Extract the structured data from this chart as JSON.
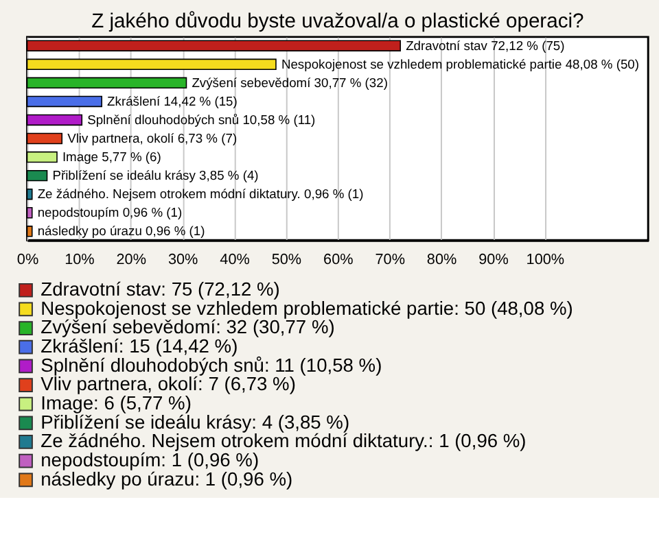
{
  "chart_data": {
    "type": "bar",
    "orientation": "horizontal",
    "title": "Z jakého důvodu byste uvažoval/a o plastické operaci?",
    "categories": [
      null,
      null,
      null,
      null,
      null,
      null,
      null,
      null,
      null,
      null,
      null
    ],
    "series": [
      {
        "name": "Zdravotní stav: 75 (72,12 %)",
        "color": "#c0201c",
        "values": [
          72.12,
          null,
          null,
          null,
          null,
          null,
          null,
          null,
          null,
          null,
          null
        ],
        "value_labels": [
          "Zdravotní stav 72,12 % (75)",
          null,
          null,
          null,
          null,
          null,
          null,
          null,
          null,
          null,
          null
        ]
      },
      {
        "name": "Nespokojenost se vzhledem problematické partie: 50 (48,08 %)",
        "color": "#f5dc1e",
        "values": [
          null,
          48.08,
          null,
          null,
          null,
          null,
          null,
          null,
          null,
          null,
          null
        ],
        "value_labels": [
          null,
          "Nespokojenost se vzhledem problematické partie 48,08 % (50)",
          null,
          null,
          null,
          null,
          null,
          null,
          null,
          null,
          null
        ]
      },
      {
        "name": "Zvýšení sebevědomí: 32 (30,77 %)",
        "color": "#28b428",
        "values": [
          null,
          null,
          30.77,
          null,
          null,
          null,
          null,
          null,
          null,
          null,
          null
        ],
        "value_labels": [
          null,
          null,
          "Zvýšení sebevědomí 30,77 % (32)",
          null,
          null,
          null,
          null,
          null,
          null,
          null,
          null
        ]
      },
      {
        "name": "Zkrášlení: 15 (14,42 %)",
        "color": "#4a6ee8",
        "values": [
          null,
          null,
          null,
          14.42,
          null,
          null,
          null,
          null,
          null,
          null,
          null
        ],
        "value_labels": [
          null,
          null,
          null,
          "Zkrášlení 14,42 % (15)",
          null,
          null,
          null,
          null,
          null,
          null,
          null
        ]
      },
      {
        "name": "Splnění dlouhodobých snů: 11 (10,58 %)",
        "color": "#b01cc8",
        "values": [
          null,
          null,
          null,
          null,
          10.58,
          null,
          null,
          null,
          null,
          null,
          null
        ],
        "value_labels": [
          null,
          null,
          null,
          null,
          "Splnění dlouhodobých snů 10,58 % (11)",
          null,
          null,
          null,
          null,
          null,
          null
        ]
      },
      {
        "name": "Vliv partnera, okolí: 7 (6,73 %)",
        "color": "#e0401c",
        "values": [
          null,
          null,
          null,
          null,
          null,
          6.73,
          null,
          null,
          null,
          null,
          null
        ],
        "value_labels": [
          null,
          null,
          null,
          null,
          null,
          "Vliv partnera, okolí 6,73 % (7)",
          null,
          null,
          null,
          null,
          null
        ]
      },
      {
        "name": "Image: 6 (5,77 %)",
        "color": "#c8f080",
        "values": [
          null,
          null,
          null,
          null,
          null,
          null,
          5.77,
          null,
          null,
          null,
          null
        ],
        "value_labels": [
          null,
          null,
          null,
          null,
          null,
          null,
          "Image 5,77 % (6)",
          null,
          null,
          null,
          null
        ]
      },
      {
        "name": "Přiblížení se ideálu krásy: 4 (3,85 %)",
        "color": "#1a8a50",
        "values": [
          null,
          null,
          null,
          null,
          null,
          null,
          null,
          3.85,
          null,
          null,
          null
        ],
        "value_labels": [
          null,
          null,
          null,
          null,
          null,
          null,
          null,
          "Přiblížení se ideálu krásy 3,85 % (4)",
          null,
          null,
          null
        ]
      },
      {
        "name": "Ze žádného. Nejsem otrokem módní diktatury.: 1 (0,96 %)",
        "color": "#207a90",
        "values": [
          null,
          null,
          null,
          null,
          null,
          null,
          null,
          null,
          0.96,
          null,
          null
        ],
        "value_labels": [
          null,
          null,
          null,
          null,
          null,
          null,
          null,
          null,
          "Ze žádného. Nejsem otrokem módní diktatury. 0,96 % (1)",
          null,
          null
        ]
      },
      {
        "name": "nepodstoupím: 1 (0,96 %)",
        "color": "#c060c0",
        "values": [
          null,
          null,
          null,
          null,
          null,
          null,
          null,
          null,
          null,
          0.96,
          null
        ],
        "value_labels": [
          null,
          null,
          null,
          null,
          null,
          null,
          null,
          null,
          null,
          "nepodstoupím 0,96 % (1)",
          null
        ]
      },
      {
        "name": "následky po úrazu: 1 (0,96 %)",
        "color": "#e07818",
        "values": [
          null,
          null,
          null,
          null,
          null,
          null,
          null,
          null,
          null,
          null,
          0.96
        ],
        "value_labels": [
          null,
          null,
          null,
          null,
          null,
          null,
          null,
          null,
          null,
          null,
          "následky po úrazu 0,96 % (1)"
        ]
      }
    ],
    "xlim": [
      0,
      120
    ],
    "xticks": [
      {
        "value": 0,
        "label": "0%"
      },
      {
        "value": 10,
        "label": "10%"
      },
      {
        "value": 20,
        "label": "20%"
      },
      {
        "value": 30,
        "label": "30%"
      },
      {
        "value": 40,
        "label": "40%"
      },
      {
        "value": 50,
        "label": "50%"
      },
      {
        "value": 60,
        "label": "60%"
      },
      {
        "value": 70,
        "label": "70%"
      },
      {
        "value": 80,
        "label": "80%"
      },
      {
        "value": 90,
        "label": "90%"
      },
      {
        "value": 100,
        "label": "100%"
      }
    ],
    "grid": "x",
    "legend": "bottom",
    "tick_labels": "x"
  }
}
